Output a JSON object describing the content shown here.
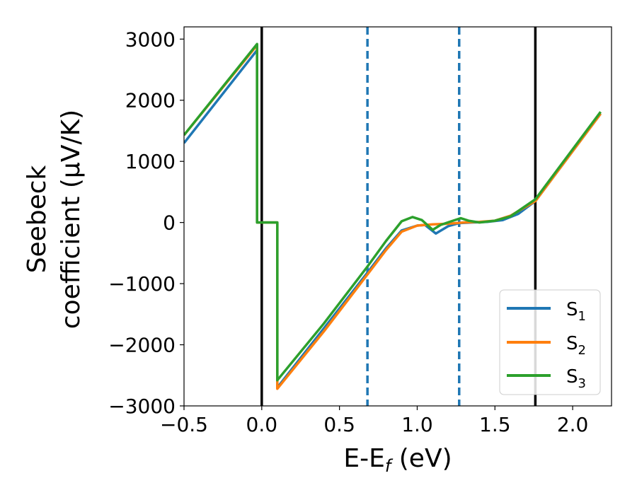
{
  "chart_data": {
    "type": "line",
    "xlabel": {
      "base": "E-E",
      "sub": "f",
      "tail": " (eV)"
    },
    "ylabel": {
      "line1": "Seebeck",
      "line2": "coefficient  (μV/K)"
    },
    "xlim": [
      -0.5,
      2.25
    ],
    "ylim": [
      -3000,
      3200
    ],
    "x_ticks": [
      -0.5,
      0.0,
      0.5,
      1.0,
      1.5,
      2.0
    ],
    "x_tick_labels": [
      "−0.5",
      "0.0",
      "0.5",
      "1.0",
      "1.5",
      "2.0"
    ],
    "y_ticks": [
      -3000,
      -2000,
      -1000,
      0,
      1000,
      2000,
      3000
    ],
    "y_tick_labels": [
      "−3000",
      "−2000",
      "−1000",
      "0",
      "1000",
      "2000",
      "3000"
    ],
    "grid": false,
    "legend_position": "bottom-right",
    "vertical_lines": [
      {
        "x": 0.0,
        "style": "solid",
        "color": "#000000"
      },
      {
        "x": 0.68,
        "style": "dashed",
        "color": "#1f77b4"
      },
      {
        "x": 1.27,
        "style": "dashed",
        "color": "#1f77b4"
      },
      {
        "x": 1.76,
        "style": "solid",
        "color": "#000000"
      }
    ],
    "series": [
      {
        "name": "S",
        "sub": "1",
        "color": "#1f77b4",
        "x": [
          -0.5,
          -0.03,
          -0.03,
          0.1,
          0.1,
          0.4,
          0.68,
          0.8,
          0.9,
          1.0,
          1.05,
          1.12,
          1.2,
          1.27,
          1.35,
          1.45,
          1.55,
          1.65,
          1.76,
          2.18
        ],
        "y": [
          1300,
          2820,
          0,
          0,
          -2700,
          -1730,
          -820,
          -420,
          -130,
          -50,
          -40,
          -180,
          -60,
          -10,
          0,
          10,
          40,
          140,
          350,
          1780
        ]
      },
      {
        "name": "S",
        "sub": "2",
        "color": "#ff7f0e",
        "x": [
          -0.5,
          -0.03,
          -0.03,
          0.1,
          0.1,
          0.4,
          0.68,
          0.8,
          0.9,
          1.0,
          1.1,
          1.2,
          1.3,
          1.4,
          1.5,
          1.6,
          1.76,
          2.18
        ],
        "y": [
          1430,
          2900,
          0,
          0,
          -2720,
          -1780,
          -850,
          -450,
          -150,
          -50,
          -30,
          -20,
          0,
          10,
          30,
          110,
          350,
          1780
        ]
      },
      {
        "name": "S",
        "sub": "3",
        "color": "#2ca02c",
        "x": [
          -0.5,
          -0.03,
          -0.03,
          0.1,
          0.1,
          0.4,
          0.68,
          0.8,
          0.9,
          0.97,
          1.03,
          1.1,
          1.15,
          1.22,
          1.28,
          1.33,
          1.4,
          1.5,
          1.6,
          1.76,
          2.18
        ],
        "y": [
          1430,
          2920,
          0,
          0,
          -2580,
          -1650,
          -720,
          -300,
          20,
          90,
          40,
          -120,
          -40,
          20,
          70,
          30,
          0,
          30,
          100,
          380,
          1810
        ]
      }
    ]
  }
}
